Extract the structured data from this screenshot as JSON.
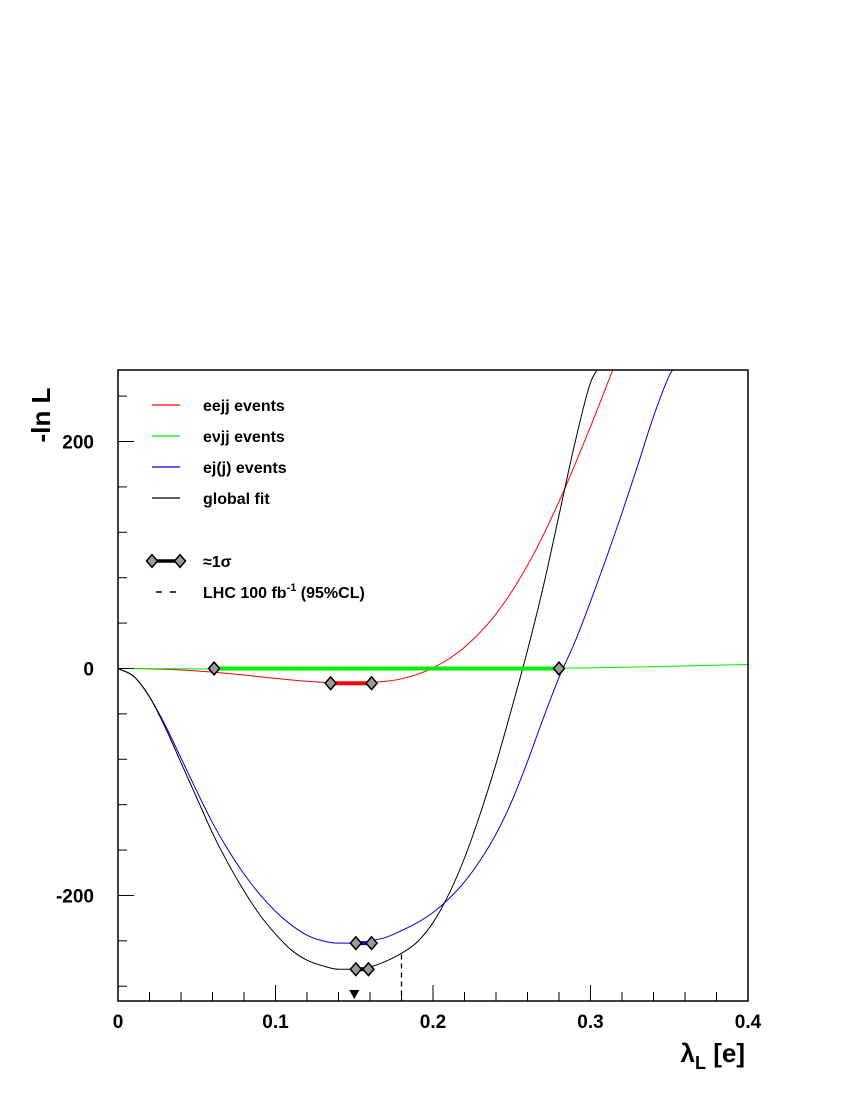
{
  "chart_data": {
    "type": "line",
    "title": "",
    "xlabel": "λL [e]",
    "xlabel_main": "λ",
    "xlabel_sub": "L",
    "xlabel_unit": " [e]",
    "ylabel": "-ln L",
    "xlim": [
      0,
      0.4
    ],
    "ylim": [
      -293,
      263
    ],
    "x_ticks": [
      0,
      0.1,
      0.2,
      0.3,
      0.4
    ],
    "x_tick_labels": [
      "0",
      "0.1",
      "0.2",
      "0.3",
      "0.4"
    ],
    "y_ticks": [
      -200,
      0,
      200
    ],
    "y_tick_labels": [
      "-200",
      "0",
      "200"
    ],
    "grid": false,
    "legend_placement": "top-left",
    "series": [
      {
        "key": "eejj",
        "name": "eejj events",
        "color": "#ff0000",
        "x": [
          0,
          0.02,
          0.04,
          0.06,
          0.08,
          0.1,
          0.12,
          0.14,
          0.15,
          0.16,
          0.18,
          0.2,
          0.22,
          0.24,
          0.26,
          0.28,
          0.3,
          0.32,
          0.34,
          0.35,
          0.36
        ],
        "y": [
          0,
          -0.3,
          -1.3,
          -3.2,
          -5.8,
          -8.7,
          -11.3,
          -12.9,
          -13.0,
          -12.5,
          -9.1,
          0.5,
          18.7,
          48.1,
          90.8,
          147,
          213,
          282,
          333,
          265,
          265
        ]
      },
      {
        "key": "evjj",
        "name": "evjj events",
        "color": "#00ee00",
        "x": [
          0,
          0.05,
          0.1,
          0.15,
          0.2,
          0.25,
          0.3,
          0.35,
          0.4
        ],
        "y": [
          0,
          -0.3,
          -0.6,
          -0.8,
          -0.6,
          -0.3,
          0.5,
          2.0,
          3.5
        ]
      },
      {
        "key": "ejj",
        "name": "ej(j) events",
        "color": "#0000dd",
        "x": [
          0,
          0.01,
          0.02,
          0.03,
          0.04,
          0.05,
          0.06,
          0.07,
          0.08,
          0.09,
          0.1,
          0.11,
          0.12,
          0.13,
          0.14,
          0.15,
          0.16,
          0.17,
          0.18,
          0.19,
          0.2,
          0.21,
          0.22,
          0.23,
          0.24,
          0.25,
          0.26,
          0.27,
          0.28,
          0.29,
          0.3,
          0.31,
          0.32,
          0.33,
          0.34,
          0.35,
          0.353
        ],
        "y": [
          0,
          -7,
          -25,
          -50,
          -79,
          -108,
          -136,
          -160,
          -181,
          -199,
          -214,
          -226,
          -235,
          -240,
          -242,
          -242,
          -240,
          -237,
          -231,
          -224,
          -215,
          -203,
          -188,
          -169,
          -146,
          -117,
          -82,
          -44,
          -8,
          23,
          59,
          97,
          137,
          179,
          222,
          258,
          265
        ]
      },
      {
        "key": "global",
        "name": "global fit",
        "color": "#000000",
        "x": [
          0,
          0.01,
          0.02,
          0.03,
          0.04,
          0.05,
          0.06,
          0.07,
          0.08,
          0.09,
          0.1,
          0.11,
          0.12,
          0.13,
          0.14,
          0.15,
          0.16,
          0.17,
          0.18,
          0.19,
          0.2,
          0.21,
          0.22,
          0.23,
          0.24,
          0.25,
          0.26,
          0.27,
          0.28,
          0.29,
          0.3,
          0.305
        ],
        "y": [
          0,
          -7,
          -25,
          -52,
          -83,
          -114,
          -145,
          -172,
          -196,
          -217,
          -234,
          -248,
          -257,
          -262,
          -265,
          -265,
          -263,
          -258,
          -251,
          -241,
          -224,
          -199,
          -167,
          -128,
          -84,
          -35,
          16,
          72,
          135,
          198,
          252,
          265
        ]
      }
    ],
    "error_bars": [
      {
        "series": "evjj",
        "x_low": 0.061,
        "x_high": 0.28,
        "y": 0,
        "color": "#00ee00"
      },
      {
        "series": "eejj",
        "x_low": 0.135,
        "x_high": 0.161,
        "y": -13,
        "color": "#ff0000"
      },
      {
        "series": "ejj",
        "x_low": 0.151,
        "x_high": 0.161,
        "y": -242,
        "color": "#0000dd"
      },
      {
        "series": "global",
        "x_low": 0.151,
        "x_high": 0.159,
        "y": -265,
        "color": "#000000"
      }
    ],
    "lhc_limit": {
      "x": 0.18,
      "y_top": -252
    },
    "best_fit_marker_x": 0.15,
    "legend": [
      {
        "label": "eejj events",
        "symbol": "line",
        "color": "#ff0000"
      },
      {
        "label": "eνjj events",
        "symbol": "line",
        "color": "#00ee00"
      },
      {
        "label": "ej(j) events",
        "symbol": "line",
        "color": "#0000dd"
      },
      {
        "label": "global fit",
        "symbol": "line",
        "color": "#000000"
      },
      {
        "label": "≈1σ",
        "symbol": "errorbar",
        "color": "#000000"
      },
      {
        "label": "LHC 100 fb⁻¹ (95%CL)",
        "label_main": "LHC 100 fb",
        "label_sup": "-1",
        "label_tail": " (95%CL)",
        "symbol": "dashed",
        "color": "#000000"
      }
    ]
  }
}
